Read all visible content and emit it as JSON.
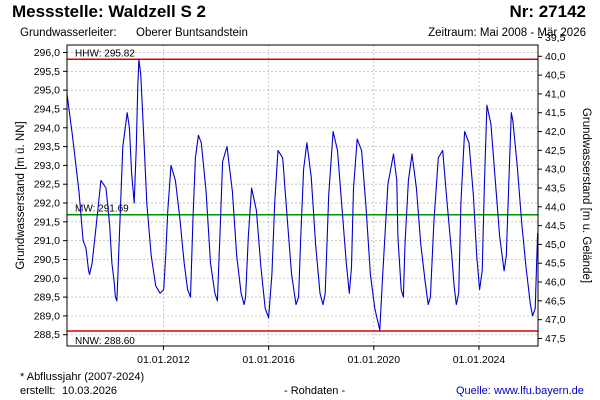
{
  "header": {
    "station_title": "Messstelle: Waldzell S 2",
    "station_number": "Nr: 27142",
    "aquifer_label": "Grundwasserleiter:",
    "aquifer_value": "Oberer Buntsandstein",
    "period": "Zeitraum: Mai 2008 - Mär 2026"
  },
  "footer": {
    "hydro_year_note": "* Abflussjahr (2007-2024)",
    "created_label": "erstellt:",
    "created_date": "10.03.2026",
    "raw_data": "- Rohdaten -",
    "source_label": "Quelle:",
    "source_url": "www.lfu.bayern.de"
  },
  "colors": {
    "series": "#0000cc",
    "hhw_line": "#e00000",
    "nnw_line": "#e00000",
    "mw_line": "#009000",
    "grid": "#c8c8c8",
    "frame": "#000000",
    "background": "#ffffff"
  },
  "chart_data": {
    "type": "line",
    "title": "",
    "ylabel_left": "Grundwasserstand [m ü. NN]",
    "ylabel_right": "Grundwasserstand [m u. Gelände]",
    "xlabel": "",
    "grid": true,
    "xlim": [
      "2008-05-01",
      "2026-03-31"
    ],
    "ylim_left": [
      288.2,
      296.2
    ],
    "ylim_right": [
      47.7,
      39.7
    ],
    "yticks_left": [
      "288,5",
      "289,0",
      "289,5",
      "290,0",
      "290,5",
      "291,0",
      "291,5",
      "292,0",
      "292,5",
      "293,0",
      "293,5",
      "294,0",
      "294,5",
      "295,0",
      "295,5",
      "296,0"
    ],
    "yticks_right": [
      "47,5",
      "47,0",
      "46,5",
      "46,0",
      "45,5",
      "45,0",
      "44,5",
      "44,0",
      "43,5",
      "43,0",
      "42,5",
      "42,0",
      "41,5",
      "41,0",
      "40,5",
      "40,0",
      "39,5"
    ],
    "xticks": [
      {
        "date": "2012-01-01",
        "label": "01.01.2012"
      },
      {
        "date": "2016-01-01",
        "label": "01.01.2016"
      },
      {
        "date": "2020-01-01",
        "label": "01.01.2020"
      },
      {
        "date": "2024-01-01",
        "label": "01.01.2024"
      }
    ],
    "reference_lines": [
      {
        "name": "HHW",
        "label": "HHW: 295.82",
        "value": 295.82
      },
      {
        "name": "MW",
        "label": "MW: 291.69",
        "value": 291.69
      },
      {
        "name": "NNW",
        "label": "NNW: 288.60",
        "value": 288.6
      }
    ],
    "series": [
      {
        "x": [
          "2008-05-01",
          "2008-07-15",
          "2008-10-15",
          "2008-12-10",
          "2009-01-20",
          "2009-02-25",
          "2009-03-10",
          "2009-04-15",
          "2009-06-10",
          "2009-08-15",
          "2009-10-25",
          "2009-12-15",
          "2010-01-15",
          "2010-02-15",
          "2010-03-05",
          "2010-03-25",
          "2010-05-01",
          "2010-06-15",
          "2010-08-15",
          "2010-09-15",
          "2010-10-15",
          "2010-11-20",
          "2010-12-20",
          "2011-01-10",
          "2011-01-25",
          "2011-02-20",
          "2011-04-01",
          "2011-05-15",
          "2011-07-15",
          "2011-09-15",
          "2011-11-15",
          "2012-01-05",
          "2012-02-01",
          "2012-03-01",
          "2012-04-15",
          "2012-06-15",
          "2012-08-15",
          "2012-10-15",
          "2012-12-01",
          "2013-01-10",
          "2013-02-15",
          "2013-03-20",
          "2013-05-01",
          "2013-06-10",
          "2013-08-15",
          "2013-10-15",
          "2013-12-15",
          "2014-01-20",
          "2014-03-01",
          "2014-04-01",
          "2014-06-01",
          "2014-08-15",
          "2014-10-15",
          "2014-12-15",
          "2015-01-25",
          "2015-02-15",
          "2015-03-25",
          "2015-05-10",
          "2015-07-15",
          "2015-09-15",
          "2015-11-15",
          "2016-01-01",
          "2016-02-15",
          "2016-03-25",
          "2016-05-10",
          "2016-07-15",
          "2016-09-15",
          "2016-11-15",
          "2017-01-15",
          "2017-02-20",
          "2017-03-20",
          "2017-05-01",
          "2017-06-15",
          "2017-08-15",
          "2017-10-15",
          "2017-12-15",
          "2018-01-25",
          "2018-02-25",
          "2018-04-15",
          "2018-06-15",
          "2018-08-15",
          "2018-10-15",
          "2018-12-15",
          "2019-01-25",
          "2019-02-25",
          "2019-03-25",
          "2019-05-15",
          "2019-07-15",
          "2019-09-15",
          "2019-11-15",
          "2020-01-15",
          "2020-02-25",
          "2020-03-25",
          "2020-05-01",
          "2020-07-15",
          "2020-10-01",
          "2020-11-15",
          "2020-12-01",
          "2021-01-15",
          "2021-02-15",
          "2021-03-10",
          "2021-04-25",
          "2021-06-15",
          "2021-08-15",
          "2021-10-15",
          "2021-12-15",
          "2022-01-25",
          "2022-02-25",
          "2022-04-15",
          "2022-06-15",
          "2022-08-15",
          "2022-10-15",
          "2022-12-15",
          "2023-01-20",
          "2023-02-20",
          "2023-03-25",
          "2023-04-25",
          "2023-06-15",
          "2023-08-15",
          "2023-10-15",
          "2023-12-01",
          "2024-01-10",
          "2024-02-15",
          "2024-03-15",
          "2024-04-20",
          "2024-06-15",
          "2024-08-15",
          "2024-10-15",
          "2024-12-15",
          "2025-01-15",
          "2025-02-20",
          "2025-03-25",
          "2025-04-15",
          "2025-06-15",
          "2025-08-15",
          "2025-10-15",
          "2025-12-15",
          "2026-01-15",
          "2026-02-20",
          "2026-03-25"
        ],
        "y": [
          294.9,
          293.8,
          292.3,
          291.0,
          290.8,
          290.2,
          290.1,
          290.4,
          291.4,
          292.6,
          292.4,
          291.4,
          290.4,
          289.9,
          289.5,
          289.4,
          291.2,
          293.5,
          294.4,
          294.0,
          292.8,
          292.0,
          293.5,
          295.1,
          295.82,
          295.4,
          293.8,
          292.0,
          290.6,
          289.8,
          289.6,
          289.7,
          290.6,
          291.8,
          293.0,
          292.6,
          291.6,
          290.4,
          289.7,
          289.5,
          291.6,
          293.2,
          293.8,
          293.6,
          292.3,
          290.4,
          289.6,
          289.4,
          291.4,
          293.1,
          293.5,
          292.3,
          290.6,
          289.6,
          289.3,
          289.5,
          291.1,
          292.4,
          291.8,
          290.3,
          289.2,
          288.95,
          290.1,
          292.0,
          293.4,
          293.2,
          291.6,
          290.1,
          289.3,
          289.5,
          291.0,
          292.9,
          293.6,
          292.7,
          290.9,
          289.6,
          289.3,
          289.6,
          292.2,
          293.9,
          293.4,
          291.9,
          290.4,
          289.6,
          290.3,
          292.4,
          293.7,
          293.4,
          291.9,
          290.1,
          289.2,
          288.85,
          288.62,
          290.0,
          292.5,
          293.3,
          292.6,
          291.1,
          289.7,
          289.5,
          290.9,
          292.6,
          293.3,
          292.4,
          290.9,
          289.9,
          289.3,
          289.5,
          291.5,
          293.2,
          293.4,
          292.0,
          290.7,
          289.8,
          289.3,
          289.6,
          292.0,
          293.9,
          293.6,
          292.2,
          290.6,
          289.7,
          290.2,
          292.4,
          294.6,
          294.1,
          292.6,
          291.1,
          290.2,
          290.6,
          292.6,
          294.4,
          294.2,
          293.0,
          291.5,
          290.3,
          289.3,
          289.0,
          289.2,
          291.2
        ]
      }
    ]
  }
}
